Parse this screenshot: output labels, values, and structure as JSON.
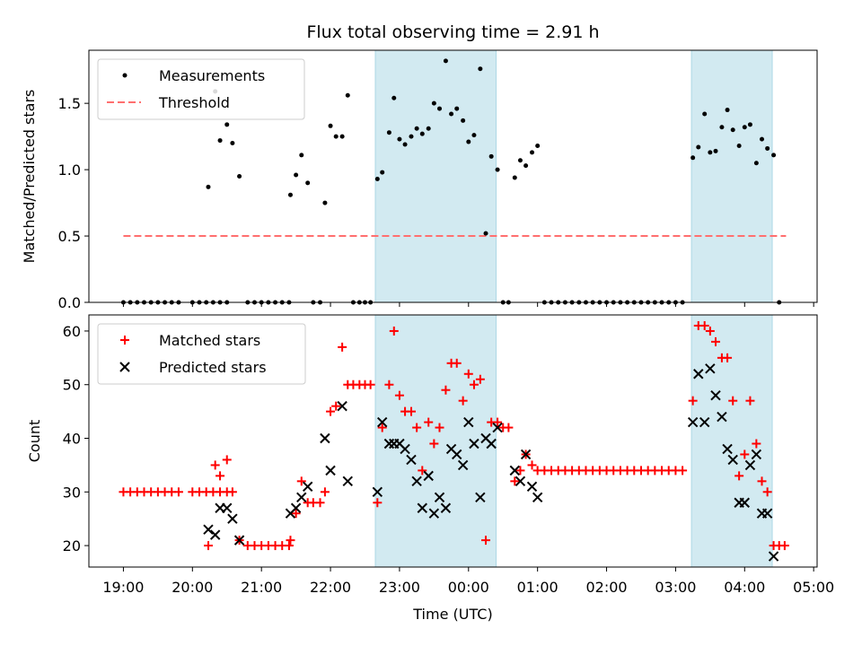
{
  "chart_data": [
    {
      "type": "scatter",
      "panel": "top",
      "title": "Flux total observing time = 2.91 h",
      "xlabel": "",
      "ylabel": "Matched/Predicted stars",
      "xlim": [
        18.5,
        29.05
      ],
      "ylim": [
        0,
        1.9
      ],
      "yticks": [
        0.0,
        0.5,
        1.0,
        1.5
      ],
      "ytick_labels": [
        "0.0",
        "0.5",
        "1.0",
        "1.5"
      ],
      "legend": [
        "Measurements",
        "Threshold"
      ],
      "legend_position": "upper-left",
      "shaded_intervals": [
        [
          22.65,
          24.4
        ],
        [
          27.23,
          28.4
        ]
      ],
      "colors": {
        "measurements": "#000000",
        "threshold": "#ff6f6f",
        "shade": "#add8e6"
      },
      "threshold": {
        "value": 0.5,
        "x_start": 19.0,
        "x_end": 28.6
      },
      "series": [
        {
          "name": "Measurements",
          "x": [
            19.0,
            19.1,
            19.2,
            19.3,
            19.4,
            19.5,
            19.6,
            19.7,
            19.8,
            20.0,
            20.1,
            20.2,
            20.3,
            20.4,
            20.5,
            20.23,
            20.33,
            20.4,
            20.5,
            20.58,
            20.68,
            20.8,
            20.9,
            21.0,
            21.1,
            21.2,
            21.3,
            21.4,
            21.42,
            21.5,
            21.58,
            21.67,
            21.75,
            21.85,
            21.92,
            22.0,
            22.08,
            22.17,
            22.25,
            22.33,
            22.42,
            22.5,
            22.58,
            22.68,
            22.75,
            22.85,
            22.92,
            23.0,
            23.08,
            23.17,
            23.25,
            23.33,
            23.42,
            23.5,
            23.58,
            23.67,
            23.75,
            23.83,
            23.92,
            24.0,
            24.08,
            24.17,
            24.25,
            24.33,
            24.42,
            24.5,
            24.58,
            24.67,
            24.75,
            24.83,
            24.92,
            25.0,
            25.1,
            25.2,
            25.3,
            25.4,
            25.5,
            25.6,
            25.7,
            25.8,
            25.9,
            26.0,
            26.1,
            26.2,
            26.3,
            26.4,
            26.5,
            26.6,
            26.7,
            26.8,
            26.9,
            27.0,
            27.1,
            27.25,
            27.33,
            27.42,
            27.5,
            27.58,
            27.67,
            27.75,
            27.83,
            27.92,
            28.0,
            28.08,
            28.17,
            28.25,
            28.33,
            28.42,
            28.5
          ],
          "y": [
            0.0,
            0.0,
            0.0,
            0.0,
            0.0,
            0.0,
            0.0,
            0.0,
            0.0,
            0.0,
            0.0,
            0.0,
            0.0,
            0.0,
            0.0,
            0.87,
            1.59,
            1.22,
            1.34,
            1.2,
            0.95,
            0.0,
            0.0,
            0.0,
            0.0,
            0.0,
            0.0,
            0.0,
            0.81,
            0.96,
            1.11,
            0.9,
            0.0,
            0.0,
            0.75,
            1.33,
            1.25,
            1.25,
            1.56,
            0.0,
            0.0,
            0.0,
            0.0,
            0.93,
            0.98,
            1.28,
            1.54,
            1.23,
            1.19,
            1.25,
            1.31,
            1.27,
            1.31,
            1.5,
            1.46,
            1.82,
            1.42,
            1.46,
            1.37,
            1.21,
            1.26,
            1.76,
            0.52,
            1.1,
            1.0,
            0.0,
            0.0,
            0.94,
            1.07,
            1.03,
            1.13,
            1.18,
            0.0,
            0.0,
            0.0,
            0.0,
            0.0,
            0.0,
            0.0,
            0.0,
            0.0,
            0.0,
            0.0,
            0.0,
            0.0,
            0.0,
            0.0,
            0.0,
            0.0,
            0.0,
            0.0,
            0.0,
            0.0,
            1.09,
            1.17,
            1.42,
            1.13,
            1.14,
            1.32,
            1.45,
            1.3,
            1.18,
            1.32,
            1.34,
            1.05,
            1.23,
            1.16,
            1.11,
            0.0
          ]
        }
      ]
    },
    {
      "type": "scatter",
      "panel": "bottom",
      "title": "",
      "xlabel": "Time (UTC)",
      "ylabel": "Count",
      "xlim": [
        18.5,
        29.05
      ],
      "ylim": [
        16,
        63
      ],
      "yticks": [
        20,
        30,
        40,
        50,
        60
      ],
      "ytick_labels": [
        "20",
        "30",
        "40",
        "50",
        "60"
      ],
      "xticks": [
        19,
        20,
        21,
        22,
        23,
        24,
        25,
        26,
        27,
        28,
        29
      ],
      "xtick_labels": [
        "19:00",
        "20:00",
        "21:00",
        "22:00",
        "23:00",
        "00:00",
        "01:00",
        "02:00",
        "03:00",
        "04:00",
        "05:00"
      ],
      "legend": [
        "Matched stars",
        "Predicted stars"
      ],
      "legend_position": "upper-left",
      "shaded_intervals": [
        [
          22.65,
          24.4
        ],
        [
          27.23,
          28.4
        ]
      ],
      "colors": {
        "matched": "#ff0000",
        "predicted": "#000000",
        "shade": "#add8e6"
      },
      "series": [
        {
          "name": "Matched stars",
          "x": [
            19.0,
            19.1,
            19.2,
            19.3,
            19.4,
            19.5,
            19.6,
            19.7,
            19.8,
            20.0,
            20.1,
            20.2,
            20.3,
            20.4,
            20.5,
            20.23,
            20.33,
            20.4,
            20.5,
            20.58,
            20.68,
            20.8,
            20.9,
            21.0,
            21.1,
            21.2,
            21.3,
            21.4,
            21.42,
            21.5,
            21.58,
            21.67,
            21.75,
            21.85,
            21.92,
            22.0,
            22.08,
            22.17,
            22.25,
            22.33,
            22.42,
            22.5,
            22.58,
            22.68,
            22.75,
            22.85,
            22.92,
            23.0,
            23.08,
            23.17,
            23.25,
            23.33,
            23.42,
            23.5,
            23.58,
            23.67,
            23.75,
            23.83,
            23.92,
            24.0,
            24.08,
            24.17,
            24.25,
            24.33,
            24.42,
            24.5,
            24.58,
            24.67,
            24.75,
            24.83,
            24.92,
            25.0,
            25.1,
            25.2,
            25.3,
            25.4,
            25.5,
            25.6,
            25.7,
            25.8,
            25.9,
            26.0,
            26.1,
            26.2,
            26.3,
            26.4,
            26.5,
            26.6,
            26.7,
            26.8,
            26.9,
            27.0,
            27.1,
            27.25,
            27.33,
            27.42,
            27.5,
            27.58,
            27.67,
            27.75,
            27.83,
            27.92,
            28.0,
            28.08,
            28.17,
            28.25,
            28.33,
            28.42,
            28.5,
            28.58
          ],
          "y": [
            30,
            30,
            30,
            30,
            30,
            30,
            30,
            30,
            30,
            30,
            30,
            30,
            30,
            30,
            30,
            20,
            35,
            33,
            36,
            30,
            21,
            20,
            20,
            20,
            20,
            20,
            20,
            20,
            21,
            26,
            32,
            28,
            28,
            28,
            30,
            45,
            46,
            57,
            50,
            50,
            50,
            50,
            50,
            28,
            42,
            50,
            60,
            48,
            45,
            45,
            42,
            34,
            43,
            39,
            42,
            49,
            54,
            54,
            47,
            52,
            50,
            51,
            21,
            43,
            43,
            42,
            42,
            32,
            34,
            37,
            35,
            34,
            34,
            34,
            34,
            34,
            34,
            34,
            34,
            34,
            34,
            34,
            34,
            34,
            34,
            34,
            34,
            34,
            34,
            34,
            34,
            34,
            34,
            47,
            61,
            61,
            60,
            58,
            55,
            55,
            47,
            33,
            37,
            47,
            39,
            32,
            30,
            20,
            20,
            20
          ]
        },
        {
          "name": "Predicted stars",
          "x": [
            20.23,
            20.33,
            20.4,
            20.5,
            20.58,
            20.68,
            21.42,
            21.5,
            21.58,
            21.67,
            21.92,
            22.0,
            22.17,
            22.25,
            22.68,
            22.75,
            22.85,
            22.92,
            23.0,
            23.08,
            23.17,
            23.25,
            23.33,
            23.42,
            23.5,
            23.58,
            23.67,
            23.75,
            23.83,
            23.92,
            24.0,
            24.08,
            24.17,
            24.25,
            24.33,
            24.42,
            24.67,
            24.75,
            24.83,
            24.92,
            25.0,
            27.25,
            27.33,
            27.42,
            27.5,
            27.58,
            27.67,
            27.75,
            27.83,
            27.92,
            28.0,
            28.08,
            28.17,
            28.25,
            28.33,
            28.42
          ],
          "y": [
            23,
            22,
            27,
            27,
            25,
            21,
            26,
            27,
            29,
            31,
            40,
            34,
            46,
            32,
            30,
            43,
            39,
            39,
            39,
            38,
            36,
            32,
            27,
            33,
            26,
            29,
            27,
            38,
            37,
            35,
            43,
            39,
            29,
            40,
            39,
            42,
            34,
            32,
            37,
            31,
            29,
            43,
            52,
            43,
            53,
            48,
            44,
            38,
            36,
            28,
            28,
            35,
            37,
            26,
            26,
            18
          ]
        }
      ]
    }
  ]
}
